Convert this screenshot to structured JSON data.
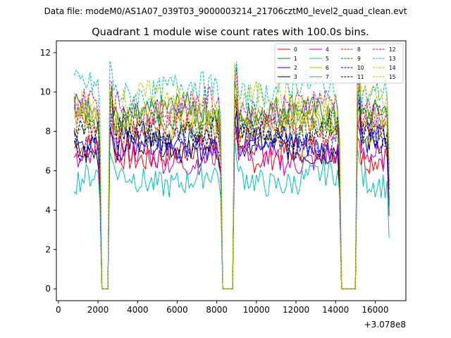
{
  "header": {
    "file_label": "Data file: modeM0/AS1A07_039T03_9000003214_21706cztM0_level2_quad_clean.evt",
    "title": "Quadrant 1 module wise count rates with 100.0s bins."
  },
  "chart_data": {
    "type": "line",
    "title": "Quadrant 1 module wise count rates with 100.0s bins.",
    "xlabel": "",
    "ylabel": "",
    "x_offset_label": "+3.078e8",
    "xlim": [
      -100,
      17550
    ],
    "ylim": [
      -0.6,
      12.6
    ],
    "xticks": [
      0,
      2000,
      4000,
      6000,
      8000,
      10000,
      12000,
      14000,
      16000
    ],
    "yticks": [
      0,
      2,
      4,
      6,
      8,
      10,
      12
    ],
    "legend_position": "top-right",
    "x_bin_seconds": 100,
    "x_start": 800,
    "x_end": 16700,
    "gaps": [
      [
        2200,
        2500
      ],
      [
        8300,
        8800
      ],
      [
        14300,
        15000
      ]
    ],
    "series": [
      {
        "name": "0",
        "color": "#ff0000",
        "style": "solid",
        "level": 6.9
      },
      {
        "name": "1",
        "color": "#008000",
        "style": "solid",
        "level": 9.0
      },
      {
        "name": "2",
        "color": "#0000ff",
        "style": "solid",
        "level": 7.4
      },
      {
        "name": "3",
        "color": "#000000",
        "style": "solid",
        "level": 7.2
      },
      {
        "name": "4",
        "color": "#bf00bf",
        "style": "solid",
        "level": 6.7
      },
      {
        "name": "5",
        "color": "#00bfbf",
        "style": "solid",
        "level": 5.6
      },
      {
        "name": "6",
        "color": "#bfbf00",
        "style": "solid",
        "level": 8.3
      },
      {
        "name": "7",
        "color": "#7f7f7f",
        "style": "solid",
        "level": 8.7
      },
      {
        "name": "8",
        "color": "#ff0000",
        "style": "dashed",
        "level": 8.1
      },
      {
        "name": "9",
        "color": "#008000",
        "style": "dashed",
        "level": 8.5
      },
      {
        "name": "10",
        "color": "#0000ff",
        "style": "dashed",
        "level": 7.5
      },
      {
        "name": "11",
        "color": "#000000",
        "style": "dashed",
        "level": 8.0
      },
      {
        "name": "12",
        "color": "#bf00bf",
        "style": "dashed",
        "level": 9.3
      },
      {
        "name": "13",
        "color": "#00bfbf",
        "style": "dashed",
        "level": 10.1
      },
      {
        "name": "14",
        "color": "#bfbf00",
        "style": "dashed",
        "level": 8.7
      },
      {
        "name": "15",
        "color": "#bfbf00",
        "style": "dashed",
        "level": 9.6
      }
    ]
  }
}
